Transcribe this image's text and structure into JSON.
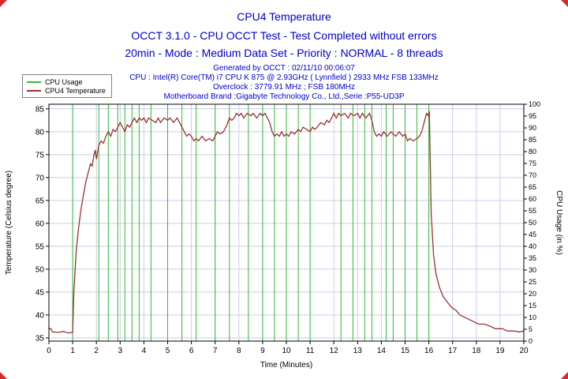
{
  "header": {
    "title": "CPU4 Temperature",
    "line2": "OCCT 3.1.0 - CPU OCCT Test - Test Completed without errors",
    "line3": "20min - Mode : Medium Data Set - Priority : NORMAL - 8 threads"
  },
  "info": {
    "lines": [
      "Generated by OCCT : 02/11/10 00:06:07",
      "CPU : Intel(R) Core(TM) i7 CPU K 875 @ 2.93GHz ( Lynnfield ) 2933 MHz FSB 133MHz",
      "Overclock : 3779.91 MHz ; FSB 180MHz",
      "Motherboard Brand :Gigabyte Technology Co., Ltd.,Serie :P55-UD3P"
    ]
  },
  "legend": {
    "items": [
      {
        "label": "CPU Usage",
        "color": "#33bb33"
      },
      {
        "label": "CPU4 Temperature",
        "color": "#993333"
      }
    ]
  },
  "chart_data": {
    "type": "line",
    "title": "CPU4 Temperature",
    "grid": true,
    "legend_position": "top-left",
    "colors": {
      "grid": "#ccccee",
      "usage": "#33bb33",
      "temperature": "#993333",
      "border": "#000000",
      "header_blue": "#0000cc"
    },
    "x_axis": {
      "label": "Time (Minutes)",
      "title_color": "#cc3300",
      "range": [
        0,
        20
      ],
      "ticks": [
        0,
        1,
        2,
        3,
        4,
        5,
        6,
        7,
        8,
        9,
        10,
        11,
        12,
        13,
        14,
        15,
        16,
        17,
        18,
        19,
        20
      ]
    },
    "temp_axis": {
      "label": "Temperature (Celsius degree)",
      "title_color": "#990000",
      "range": [
        34.3,
        86
      ],
      "ticks": [
        35,
        40,
        45,
        50,
        55,
        60,
        65,
        70,
        75,
        80,
        85
      ]
    },
    "usage_axis": {
      "label": "CPU Usage (in %)",
      "title_color": "#0000cc",
      "range": [
        0,
        100
      ],
      "ticks": [
        0,
        5,
        10,
        15,
        20,
        25,
        30,
        35,
        40,
        45,
        50,
        55,
        60,
        65,
        70,
        75,
        80,
        85,
        90,
        95,
        100
      ]
    },
    "series": [
      {
        "name": "CPU Usage",
        "axis": "usage",
        "low_value": 0,
        "high_value": 100,
        "high_start": 1.0,
        "high_end": 16.0,
        "dips_at_x": [
          2.1,
          2.5,
          2.9,
          3.2,
          3.5,
          3.8,
          4.3,
          5.0,
          5.6,
          6.2,
          7.0,
          7.6,
          8.4,
          9.0,
          9.5,
          10.0,
          10.5,
          11.0,
          12.3,
          12.8,
          13.3,
          13.6,
          14.2,
          14.5,
          15.0,
          15.5
        ]
      },
      {
        "name": "CPU4 Temperature",
        "axis": "temp",
        "points": [
          [
            0,
            37
          ],
          [
            0.08,
            37
          ],
          [
            0.15,
            36.3
          ],
          [
            0.4,
            36.2
          ],
          [
            0.6,
            36.4
          ],
          [
            0.8,
            36.1
          ],
          [
            1.0,
            36.2
          ],
          [
            1.05,
            45
          ],
          [
            1.15,
            54
          ],
          [
            1.25,
            59
          ],
          [
            1.35,
            63
          ],
          [
            1.45,
            66
          ],
          [
            1.55,
            69
          ],
          [
            1.65,
            71
          ],
          [
            1.75,
            73
          ],
          [
            1.82,
            72.5
          ],
          [
            1.9,
            75
          ],
          [
            1.95,
            76
          ],
          [
            2.0,
            74
          ],
          [
            2.1,
            77
          ],
          [
            2.2,
            78
          ],
          [
            2.3,
            77.5
          ],
          [
            2.4,
            79
          ],
          [
            2.5,
            80
          ],
          [
            2.6,
            79
          ],
          [
            2.7,
            80.5
          ],
          [
            2.8,
            80
          ],
          [
            2.9,
            81
          ],
          [
            3.0,
            82
          ],
          [
            3.1,
            81
          ],
          [
            3.2,
            80
          ],
          [
            3.3,
            81.5
          ],
          [
            3.4,
            81
          ],
          [
            3.5,
            82
          ],
          [
            3.6,
            83
          ],
          [
            3.7,
            82
          ],
          [
            3.8,
            83
          ],
          [
            3.9,
            82.5
          ],
          [
            4.0,
            83
          ],
          [
            4.1,
            82
          ],
          [
            4.2,
            83
          ],
          [
            4.35,
            82.5
          ],
          [
            4.5,
            82
          ],
          [
            4.6,
            83
          ],
          [
            4.7,
            82
          ],
          [
            4.85,
            83
          ],
          [
            5.0,
            82.5
          ],
          [
            5.1,
            83
          ],
          [
            5.25,
            82
          ],
          [
            5.4,
            83
          ],
          [
            5.5,
            82
          ],
          [
            5.6,
            81
          ],
          [
            5.7,
            80
          ],
          [
            5.8,
            79
          ],
          [
            5.9,
            79.5
          ],
          [
            6.0,
            79
          ],
          [
            6.1,
            78
          ],
          [
            6.2,
            78.5
          ],
          [
            6.3,
            78
          ],
          [
            6.45,
            79
          ],
          [
            6.6,
            78
          ],
          [
            6.75,
            78.5
          ],
          [
            6.9,
            78
          ],
          [
            7.0,
            79
          ],
          [
            7.1,
            80
          ],
          [
            7.2,
            79.5
          ],
          [
            7.35,
            80
          ],
          [
            7.5,
            81.5
          ],
          [
            7.6,
            83
          ],
          [
            7.7,
            82.5
          ],
          [
            7.8,
            83
          ],
          [
            7.9,
            84
          ],
          [
            8.0,
            83.5
          ],
          [
            8.1,
            84
          ],
          [
            8.2,
            83
          ],
          [
            8.35,
            84
          ],
          [
            8.5,
            83.5
          ],
          [
            8.6,
            84
          ],
          [
            8.75,
            83
          ],
          [
            8.9,
            84
          ],
          [
            9.0,
            83.5
          ],
          [
            9.1,
            84
          ],
          [
            9.2,
            83
          ],
          [
            9.3,
            82
          ],
          [
            9.4,
            80
          ],
          [
            9.5,
            79
          ],
          [
            9.6,
            79.5
          ],
          [
            9.7,
            79
          ],
          [
            9.8,
            80
          ],
          [
            9.9,
            79
          ],
          [
            10.0,
            79.5
          ],
          [
            10.1,
            79
          ],
          [
            10.2,
            80
          ],
          [
            10.35,
            79.5
          ],
          [
            10.5,
            80.5
          ],
          [
            10.6,
            80
          ],
          [
            10.7,
            81
          ],
          [
            10.85,
            80.5
          ],
          [
            11.0,
            80
          ],
          [
            11.1,
            81
          ],
          [
            11.2,
            80.5
          ],
          [
            11.3,
            81
          ],
          [
            11.45,
            82
          ],
          [
            11.6,
            81.5
          ],
          [
            11.7,
            82.5
          ],
          [
            11.8,
            82
          ],
          [
            11.9,
            83
          ],
          [
            12.0,
            84
          ],
          [
            12.1,
            83
          ],
          [
            12.2,
            84
          ],
          [
            12.3,
            83.5
          ],
          [
            12.45,
            84
          ],
          [
            12.6,
            83
          ],
          [
            12.7,
            84
          ],
          [
            12.85,
            83.5
          ],
          [
            13.0,
            84
          ],
          [
            13.1,
            83
          ],
          [
            13.2,
            84
          ],
          [
            13.35,
            83
          ],
          [
            13.5,
            84
          ],
          [
            13.6,
            82.5
          ],
          [
            13.7,
            80
          ],
          [
            13.8,
            79
          ],
          [
            13.9,
            79.5
          ],
          [
            14.0,
            79
          ],
          [
            14.1,
            80
          ],
          [
            14.25,
            79
          ],
          [
            14.4,
            80
          ],
          [
            14.5,
            79.5
          ],
          [
            14.6,
            79
          ],
          [
            14.75,
            80
          ],
          [
            14.9,
            79
          ],
          [
            15.0,
            79.5
          ],
          [
            15.1,
            78
          ],
          [
            15.2,
            78.5
          ],
          [
            15.35,
            78
          ],
          [
            15.5,
            78.5
          ],
          [
            15.6,
            79
          ],
          [
            15.7,
            80
          ],
          [
            15.8,
            82
          ],
          [
            15.9,
            84
          ],
          [
            15.97,
            83.5
          ],
          [
            16.02,
            84.5
          ],
          [
            16.1,
            62
          ],
          [
            16.2,
            53
          ],
          [
            16.3,
            49
          ],
          [
            16.45,
            46
          ],
          [
            16.6,
            44
          ],
          [
            16.75,
            43
          ],
          [
            16.9,
            42
          ],
          [
            17.0,
            41.5
          ],
          [
            17.15,
            41
          ],
          [
            17.3,
            40
          ],
          [
            17.5,
            39.5
          ],
          [
            17.7,
            39
          ],
          [
            17.9,
            38.5
          ],
          [
            18.1,
            38
          ],
          [
            18.35,
            38
          ],
          [
            18.6,
            37.5
          ],
          [
            18.8,
            37
          ],
          [
            19.1,
            37
          ],
          [
            19.3,
            36.5
          ],
          [
            19.6,
            36.5
          ],
          [
            19.8,
            36.3
          ],
          [
            20,
            36.5
          ]
        ]
      }
    ]
  }
}
